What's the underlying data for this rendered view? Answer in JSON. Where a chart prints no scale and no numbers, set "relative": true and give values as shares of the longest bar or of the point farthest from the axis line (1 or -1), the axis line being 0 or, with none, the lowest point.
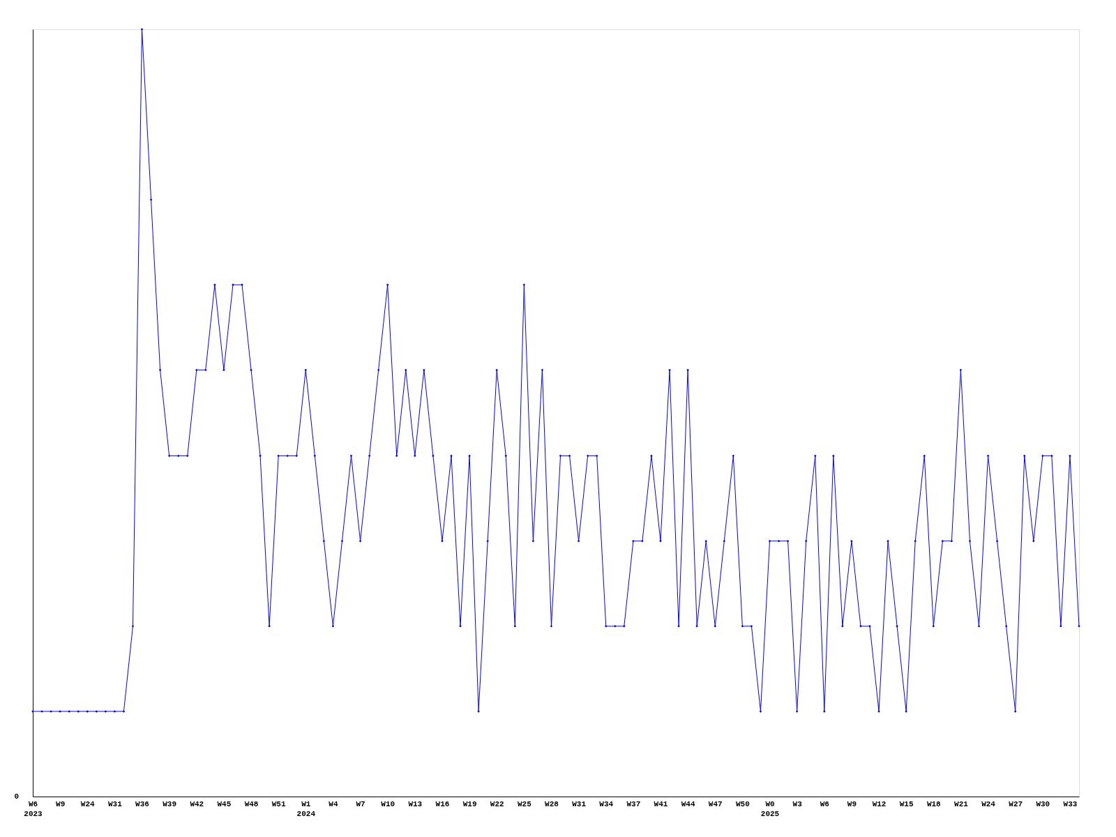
{
  "chart_data": {
    "type": "line",
    "relative": true,
    "marker": "diamond",
    "grid": false,
    "categories": [
      "W6\n2023",
      null,
      null,
      "W9",
      null,
      null,
      "W24",
      null,
      null,
      "W31",
      null,
      null,
      "W36",
      null,
      null,
      "W39",
      null,
      null,
      "W42",
      null,
      null,
      "W45",
      null,
      null,
      "W48",
      null,
      null,
      "W51",
      null,
      null,
      "W1\n2024",
      null,
      null,
      "W4",
      null,
      null,
      "W7",
      null,
      null,
      "W10",
      null,
      null,
      "W13",
      null,
      null,
      "W16",
      null,
      null,
      "W19",
      null,
      null,
      "W22",
      null,
      null,
      "W25",
      null,
      null,
      "W28",
      null,
      null,
      "W31",
      null,
      null,
      "W34",
      null,
      null,
      "W37",
      null,
      null,
      "W41",
      null,
      null,
      "W44",
      null,
      null,
      "W47",
      null,
      null,
      "W50",
      null,
      null,
      "W0\n2025",
      null,
      null,
      "W3",
      null,
      null,
      "W6",
      null,
      null,
      "W9",
      null,
      null,
      "W12",
      null,
      null,
      "W15",
      null,
      null,
      "W18",
      null,
      null,
      "W21",
      null,
      null,
      "W24",
      null,
      null,
      "W27",
      null,
      null,
      "W30",
      null,
      null,
      "W33",
      null
    ],
    "series": [
      {
        "color": "#0000ff",
        "values": [
          0.111,
          0.111,
          0.111,
          0.111,
          0.111,
          0.111,
          0.111,
          0.111,
          0.111,
          0.111,
          0.111,
          0.222,
          1,
          0.778,
          0.556,
          0.444,
          0.444,
          0.444,
          0.556,
          0.556,
          0.667,
          0.556,
          0.667,
          0.667,
          0.556,
          0.444,
          0.222,
          0.444,
          0.444,
          0.444,
          0.556,
          0.444,
          0.333,
          0.222,
          0.333,
          0.444,
          0.333,
          0.444,
          0.556,
          0.667,
          0.444,
          0.556,
          0.444,
          0.556,
          0.444,
          0.333,
          0.444,
          0.222,
          0.444,
          0.111,
          0.333,
          0.556,
          0.444,
          0.222,
          0.667,
          0.333,
          0.556,
          0.222,
          0.444,
          0.444,
          0.333,
          0.444,
          0.444,
          0.222,
          0.222,
          0.222,
          0.333,
          0.333,
          0.444,
          0.333,
          0.556,
          0.222,
          0.556,
          0.222,
          0.333,
          0.222,
          0.333,
          0.444,
          0.222,
          0.222,
          0.111,
          0.333,
          0.333,
          0.333,
          0.111,
          0.333,
          0.444,
          0.111,
          0.444,
          0.222,
          0.333,
          0.222,
          0.222,
          0.111,
          0.333,
          0.222,
          0.111,
          0.333,
          0.444,
          0.222,
          0.333,
          0.333,
          0.556,
          0.333,
          0.222,
          0.444,
          0.333,
          0.222,
          0.111,
          0.444,
          0.333,
          0.444,
          0.444,
          0.222,
          0.444,
          0.222
        ]
      }
    ],
    "annotations": [
      "0"
    ]
  }
}
